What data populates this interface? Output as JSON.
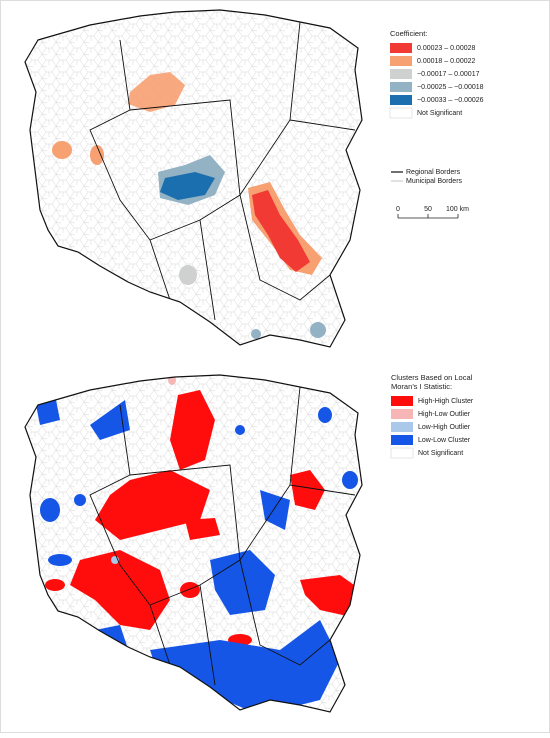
{
  "coefficient_legend": {
    "title": "Coefficient:",
    "items": [
      {
        "label": "0.00023 – 0.00028",
        "color": "#f03a33"
      },
      {
        "label": "0.00018 – 0.00022",
        "color": "#f7a072"
      },
      {
        "label": "−0.00017 – 0.00017",
        "color": "#cfd0d0"
      },
      {
        "label": "−0.00025 – −0.00018",
        "color": "#93b2c4"
      },
      {
        "label": "−0.00033 – −0.00026",
        "color": "#1c6faf"
      },
      {
        "label": "Not Significant",
        "color": "#ffffff"
      }
    ]
  },
  "border_legend": {
    "regional": "Regional Borders",
    "municipal": "Municipal Borders"
  },
  "scale_bar": {
    "labels": [
      "0",
      "50",
      "100 km"
    ]
  },
  "cluster_legend": {
    "title_lines": [
      "Clusters Based on Local",
      "Moran’s I Statistic:"
    ],
    "items": [
      {
        "label": "High-High Cluster",
        "color": "#ff0d0d"
      },
      {
        "label": "High-Low Outlier",
        "color": "#f6b6b6"
      },
      {
        "label": "Low-High Outlier",
        "color": "#a9c8ea"
      },
      {
        "label": "Low-Low Cluster",
        "color": "#1556e6"
      },
      {
        "label": "Not Significant",
        "color": "#ffffff"
      }
    ]
  }
}
